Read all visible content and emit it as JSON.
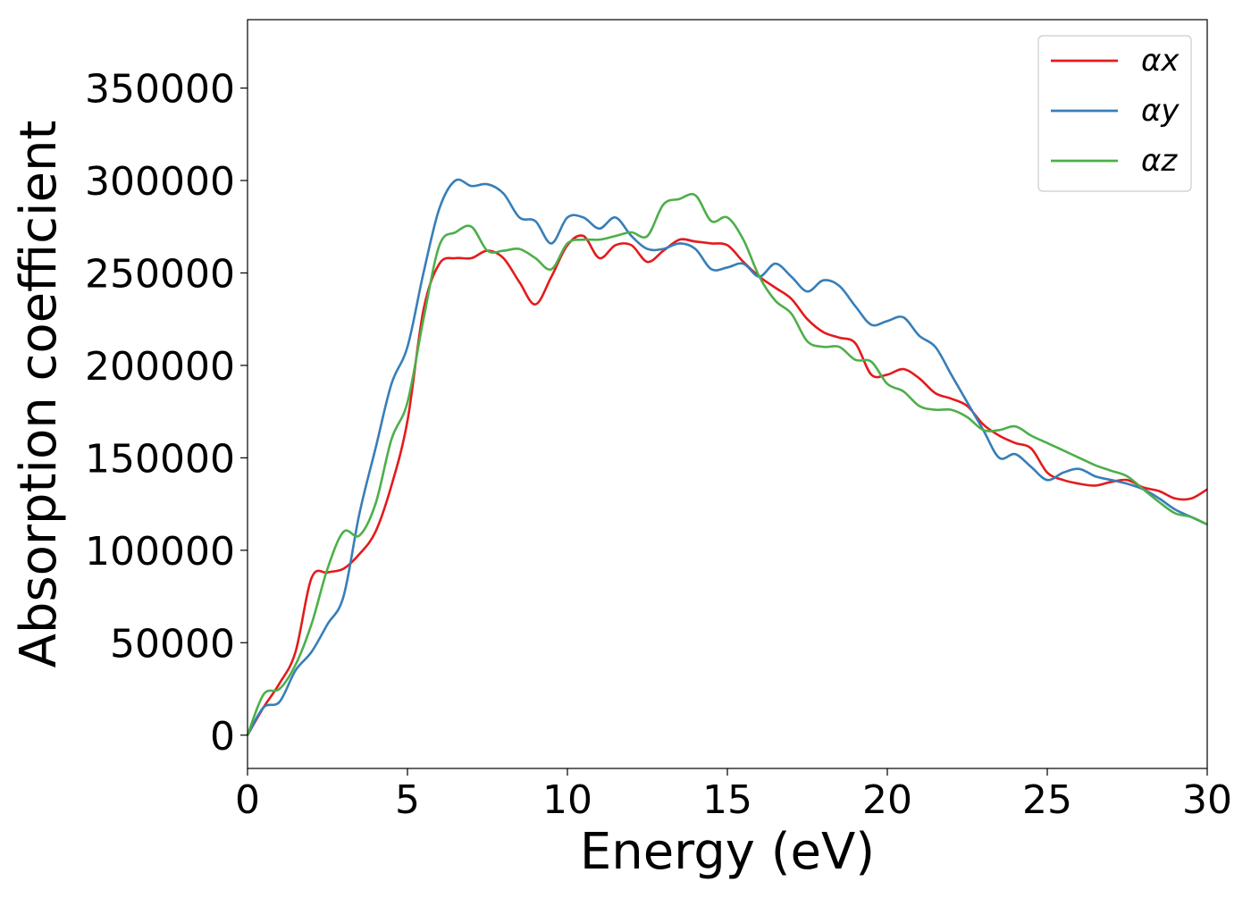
{
  "chart_data": {
    "type": "line",
    "title": "",
    "xlabel": "Energy (eV)",
    "ylabel": "Absorption coefficient",
    "xlim": [
      0,
      30
    ],
    "ylim": [
      -18000,
      387000
    ],
    "xticks": [
      0,
      5,
      10,
      15,
      20,
      25,
      30
    ],
    "yticks": [
      0,
      50000,
      100000,
      150000,
      200000,
      250000,
      300000,
      350000
    ],
    "grid": false,
    "legend_position": "top-right",
    "x": [
      0,
      0.5,
      1,
      1.5,
      2,
      2.5,
      3,
      3.5,
      4,
      4.5,
      5,
      5.5,
      6,
      6.5,
      7,
      7.5,
      8,
      8.5,
      9,
      9.5,
      10,
      10.5,
      11,
      11.5,
      12,
      12.5,
      13,
      13.5,
      14,
      14.5,
      15,
      15.5,
      16,
      16.5,
      17,
      17.5,
      18,
      18.5,
      19,
      19.5,
      20,
      20.5,
      21,
      21.5,
      22,
      22.5,
      23,
      23.5,
      24,
      24.5,
      25,
      25.5,
      26,
      26.5,
      27,
      27.5,
      28,
      28.5,
      29,
      29.5,
      30
    ],
    "series": [
      {
        "name": "αx",
        "color": "#e41a1c",
        "values": [
          0,
          15000,
          28000,
          45000,
          85000,
          88000,
          90000,
          98000,
          110000,
          135000,
          170000,
          230000,
          255000,
          258000,
          258000,
          262000,
          258000,
          245000,
          233000,
          248000,
          265000,
          270000,
          258000,
          265000,
          265000,
          256000,
          262000,
          268000,
          267000,
          266000,
          265000,
          256000,
          248000,
          242000,
          236000,
          225000,
          218000,
          215000,
          212000,
          195000,
          195000,
          198000,
          193000,
          185000,
          182000,
          178000,
          168000,
          162000,
          158000,
          155000,
          142000,
          138000,
          136000,
          135000,
          137000,
          138000,
          134000,
          132000,
          128000,
          128000,
          133000
        ]
      },
      {
        "name": "αy",
        "color": "#377eb8",
        "values": [
          0,
          15000,
          18000,
          35000,
          45000,
          60000,
          75000,
          120000,
          155000,
          190000,
          210000,
          250000,
          285000,
          300000,
          297000,
          298000,
          293000,
          280000,
          278000,
          266000,
          280000,
          280000,
          274000,
          280000,
          270000,
          263000,
          263000,
          266000,
          263000,
          252000,
          253000,
          255000,
          248000,
          255000,
          248000,
          240000,
          246000,
          243000,
          232000,
          222000,
          224000,
          226000,
          216000,
          210000,
          195000,
          180000,
          165000,
          150000,
          152000,
          145000,
          138000,
          142000,
          144000,
          140000,
          138000,
          136000,
          133000,
          128000,
          122000,
          118000,
          114000
        ]
      },
      {
        "name": "αz",
        "color": "#4daf4a",
        "values": [
          0,
          22000,
          25000,
          38000,
          60000,
          90000,
          110000,
          108000,
          125000,
          160000,
          180000,
          225000,
          265000,
          272000,
          275000,
          262000,
          262000,
          263000,
          258000,
          252000,
          266000,
          268000,
          268000,
          270000,
          272000,
          270000,
          287000,
          290000,
          292000,
          278000,
          280000,
          268000,
          248000,
          235000,
          228000,
          213000,
          210000,
          210000,
          203000,
          202000,
          190000,
          186000,
          178000,
          176000,
          176000,
          172000,
          165000,
          165000,
          167000,
          162000,
          158000,
          154000,
          150000,
          146000,
          143000,
          140000,
          133000,
          126000,
          120000,
          118000,
          114000
        ]
      }
    ]
  }
}
